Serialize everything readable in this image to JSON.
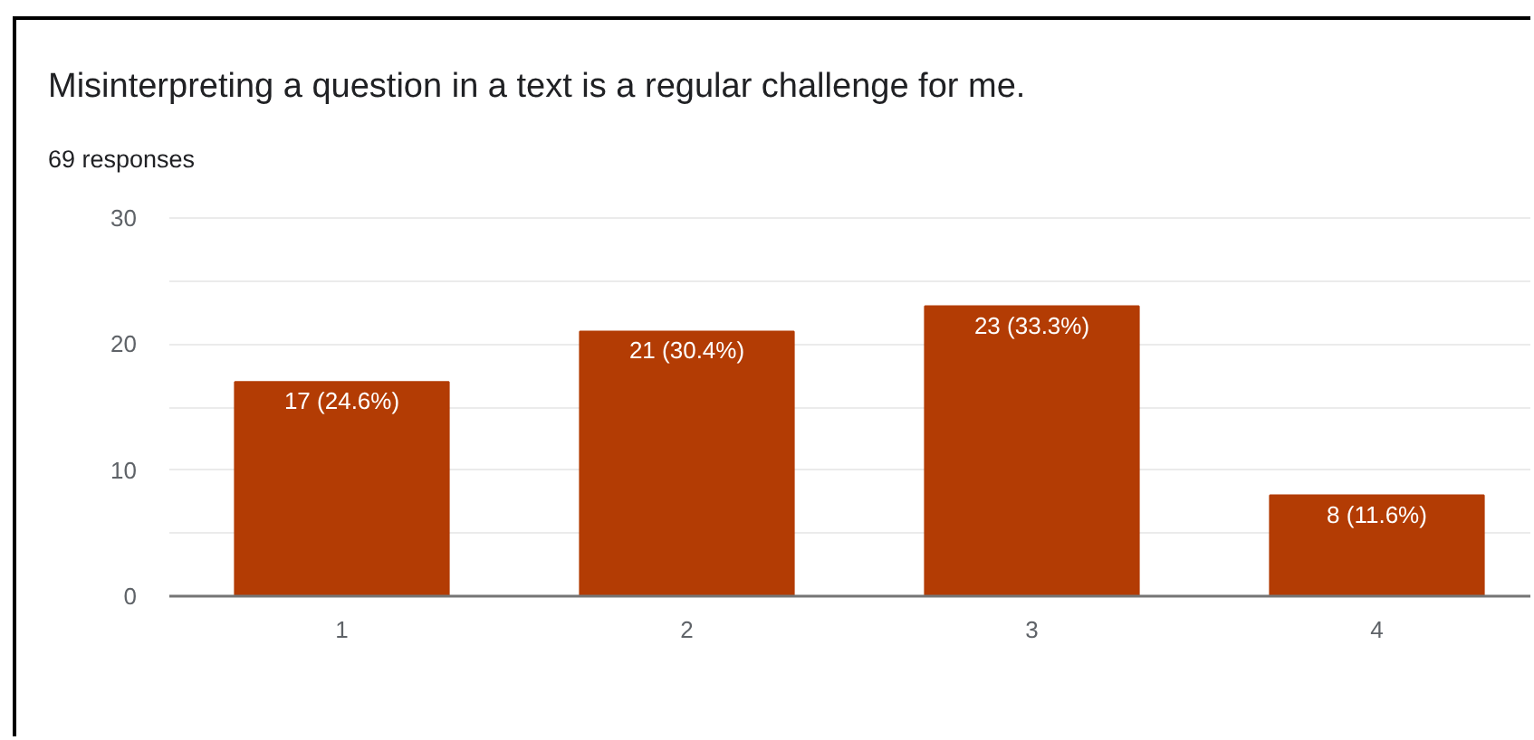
{
  "chart_data": {
    "type": "bar",
    "title": "Misinterpreting a question in a text is a regular challenge for me.",
    "subtitle": "69 responses",
    "categories": [
      "1",
      "2",
      "3",
      "4"
    ],
    "values": [
      17,
      21,
      23,
      8
    ],
    "color": "#b33c04",
    "value_labels": [
      "17 (24.6%)",
      "21 (30.4%)",
      "23 (33.3%)",
      "8 (11.6%)"
    ],
    "ylim": [
      0,
      30
    ],
    "yticks": [
      0,
      {
        "value": 5,
        "label": null
      },
      10,
      {
        "value": 15,
        "label": null
      },
      20,
      {
        "value": 25,
        "label": null
      },
      30
    ],
    "grid": "y"
  }
}
